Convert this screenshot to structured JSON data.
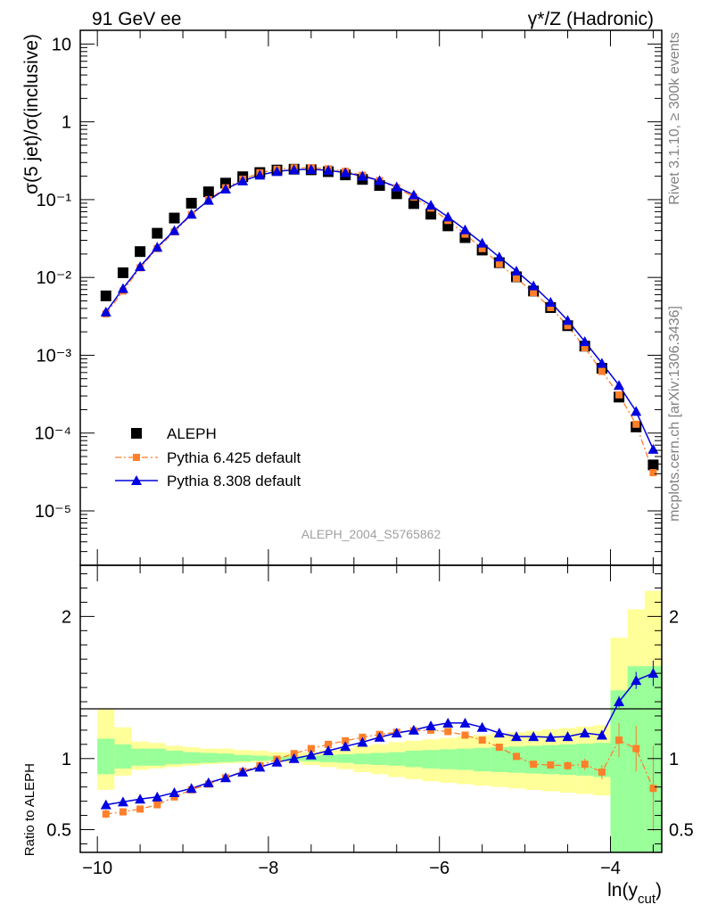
{
  "header": {
    "left_title": "91 GeV ee",
    "right_title": "γ*/Z (Hadronic)"
  },
  "side_labels": {
    "rivet": "Rivet 3.1.10, ≥ 300k events",
    "mcplots": "mcplots.cern.ch [arXiv:1306.3436]"
  },
  "analysis_id": "ALEPH_2004_S5765862",
  "chart_data": [
    {
      "type": "scatter",
      "panel": "main",
      "ylabel": "σ(5 jet)/σ(inclusive)",
      "yscale": "log",
      "ylim": [
        2e-06,
        15
      ],
      "xlim": [
        -10.2,
        -3.4
      ],
      "y_ticks": [
        "10⁻⁵",
        "10⁻⁴",
        "10⁻³",
        "10⁻²",
        "10⁻¹",
        "1",
        "10"
      ],
      "legend_position": "bottom-left",
      "x": [
        -9.9,
        -9.7,
        -9.5,
        -9.3,
        -9.1,
        -8.9,
        -8.7,
        -8.5,
        -8.3,
        -8.1,
        -7.9,
        -7.7,
        -7.5,
        -7.3,
        -7.1,
        -6.9,
        -6.7,
        -6.5,
        -6.3,
        -6.1,
        -5.9,
        -5.7,
        -5.5,
        -5.3,
        -5.1,
        -4.9,
        -4.7,
        -4.5,
        -4.3,
        -4.1,
        -3.9,
        -3.7,
        -3.5
      ],
      "series": [
        {
          "name": "ALEPH",
          "color": "#000000",
          "marker": "square",
          "values": [
            0.0058,
            0.0115,
            0.0215,
            0.037,
            0.058,
            0.09,
            0.126,
            0.163,
            0.197,
            0.223,
            0.24,
            0.246,
            0.242,
            0.229,
            0.208,
            0.182,
            0.152,
            0.119,
            0.089,
            0.065,
            0.046,
            0.0325,
            0.0225,
            0.0155,
            0.0102,
            0.0067,
            0.0041,
            0.0024,
            0.00131,
            0.00068,
            0.00029,
            0.00012,
            3.9e-05
          ]
        },
        {
          "name": "Pythia 6.425 default",
          "color": "#ff7f2a",
          "marker": "square",
          "line": "dash-dot",
          "values": [
            0.0034,
            0.0067,
            0.0133,
            0.0235,
            0.0385,
            0.064,
            0.1,
            0.142,
            0.183,
            0.221,
            0.245,
            0.256,
            0.257,
            0.249,
            0.231,
            0.206,
            0.176,
            0.142,
            0.108,
            0.078,
            0.054,
            0.036,
            0.0235,
            0.015,
            0.0098,
            0.0064,
            0.0041,
            0.0024,
            0.00125,
            0.00062,
            0.00031,
            0.00013,
            3.1e-05
          ]
        },
        {
          "name": "Pythia 8.308 default",
          "color": "#0000e0",
          "marker": "triangle",
          "line": "solid",
          "values": [
            0.0036,
            0.0072,
            0.0138,
            0.0245,
            0.04,
            0.065,
            0.098,
            0.137,
            0.174,
            0.207,
            0.23,
            0.242,
            0.245,
            0.238,
            0.222,
            0.201,
            0.176,
            0.146,
            0.115,
            0.085,
            0.06,
            0.041,
            0.0277,
            0.0183,
            0.0121,
            0.0078,
            0.0048,
            0.0028,
            0.0015,
            0.00079,
            0.00041,
            0.00019,
            6.2e-05
          ]
        }
      ]
    },
    {
      "type": "scatter",
      "panel": "ratio",
      "ylabel": "Ratio to ALEPH",
      "xlabel": "ln(y_cut)",
      "xlim": [
        -10.2,
        -3.4
      ],
      "ylim": [
        0.34,
        2.36
      ],
      "y_ticks": [
        "0.5",
        "1",
        "2"
      ],
      "x_ticks": [
        "−10",
        "−8",
        "−6",
        "−4"
      ],
      "x": [
        -9.9,
        -9.7,
        -9.5,
        -9.3,
        -9.1,
        -8.9,
        -8.7,
        -8.5,
        -8.3,
        -8.1,
        -7.9,
        -7.7,
        -7.5,
        -7.3,
        -7.1,
        -6.9,
        -6.7,
        -6.5,
        -6.3,
        -6.1,
        -5.9,
        -5.7,
        -5.5,
        -5.3,
        -5.1,
        -4.9,
        -4.7,
        -4.5,
        -4.3,
        -4.1,
        -3.9,
        -3.7,
        -3.5
      ],
      "bands": {
        "stat_low": [
          0.89,
          0.93,
          0.95,
          0.95,
          0.96,
          0.965,
          0.97,
          0.975,
          0.98,
          0.985,
          0.99,
          0.985,
          0.98,
          0.975,
          0.97,
          0.96,
          0.955,
          0.95,
          0.94,
          0.93,
          0.925,
          0.92,
          0.91,
          0.905,
          0.9,
          0.895,
          0.89,
          0.885,
          0.88,
          0.87,
          0.1,
          0.1,
          0.1
        ],
        "stat_high": [
          1.14,
          1.1,
          1.07,
          1.07,
          1.055,
          1.045,
          1.04,
          1.035,
          1.025,
          1.02,
          1.015,
          1.015,
          1.02,
          1.025,
          1.03,
          1.035,
          1.04,
          1.045,
          1.055,
          1.06,
          1.065,
          1.07,
          1.075,
          1.08,
          1.085,
          1.09,
          1.095,
          1.1,
          1.105,
          1.11,
          1.48,
          1.65,
          1.65
        ],
        "tot_low": [
          0.78,
          0.88,
          0.92,
          0.93,
          0.94,
          0.95,
          0.96,
          0.965,
          0.97,
          0.975,
          0.98,
          0.97,
          0.955,
          0.94,
          0.925,
          0.905,
          0.89,
          0.87,
          0.855,
          0.84,
          0.83,
          0.82,
          0.81,
          0.8,
          0.79,
          0.78,
          0.77,
          0.76,
          0.75,
          0.74,
          0.1,
          0.1,
          0.1
        ],
        "tot_high": [
          1.35,
          1.22,
          1.12,
          1.11,
          1.09,
          1.08,
          1.07,
          1.07,
          1.06,
          1.055,
          1.045,
          1.04,
          1.045,
          1.06,
          1.075,
          1.09,
          1.1,
          1.115,
          1.125,
          1.135,
          1.145,
          1.155,
          1.165,
          1.175,
          1.185,
          1.195,
          1.205,
          1.215,
          1.225,
          1.235,
          1.85,
          2.05,
          2.18
        ]
      },
      "series": [
        {
          "name": "Pythia 6.425 default",
          "color": "#ff7f2a",
          "marker": "square",
          "line": "dash-dot",
          "values": [
            0.61,
            0.625,
            0.645,
            0.675,
            0.73,
            0.78,
            0.82,
            0.865,
            0.91,
            0.95,
            0.995,
            1.035,
            1.07,
            1.1,
            1.125,
            1.15,
            1.17,
            1.185,
            1.195,
            1.2,
            1.19,
            1.165,
            1.13,
            1.08,
            1.015,
            0.96,
            0.955,
            0.95,
            0.96,
            0.905,
            1.13,
            1.07,
            0.79
          ],
          "errors": [
            0.03,
            0.02,
            0.02,
            0.02,
            0.01,
            0.01,
            0.01,
            0.01,
            0.01,
            0.01,
            0.01,
            0.01,
            0.01,
            0.01,
            0.01,
            0.01,
            0.01,
            0.01,
            0.01,
            0.01,
            0.01,
            0.01,
            0.01,
            0.01,
            0.02,
            0.02,
            0.02,
            0.03,
            0.04,
            0.05,
            0.12,
            0.16,
            0.3
          ]
        },
        {
          "name": "Pythia 8.308 default",
          "color": "#0000e0",
          "marker": "triangle",
          "line": "solid",
          "values": [
            0.675,
            0.695,
            0.715,
            0.73,
            0.76,
            0.79,
            0.83,
            0.865,
            0.905,
            0.94,
            0.975,
            1.0,
            1.025,
            1.055,
            1.085,
            1.115,
            1.15,
            1.18,
            1.2,
            1.23,
            1.25,
            1.25,
            1.22,
            1.18,
            1.155,
            1.155,
            1.15,
            1.155,
            1.18,
            1.165,
            1.4,
            1.55,
            1.6
          ],
          "errors": [
            0.01,
            0.01,
            0.01,
            0.01,
            0.01,
            0.01,
            0.01,
            0.01,
            0.01,
            0.01,
            0.01,
            0.01,
            0.01,
            0.01,
            0.01,
            0.01,
            0.01,
            0.01,
            0.01,
            0.01,
            0.01,
            0.01,
            0.01,
            0.01,
            0.01,
            0.01,
            0.01,
            0.01,
            0.01,
            0.02,
            0.04,
            0.06,
            0.09
          ]
        }
      ]
    }
  ]
}
